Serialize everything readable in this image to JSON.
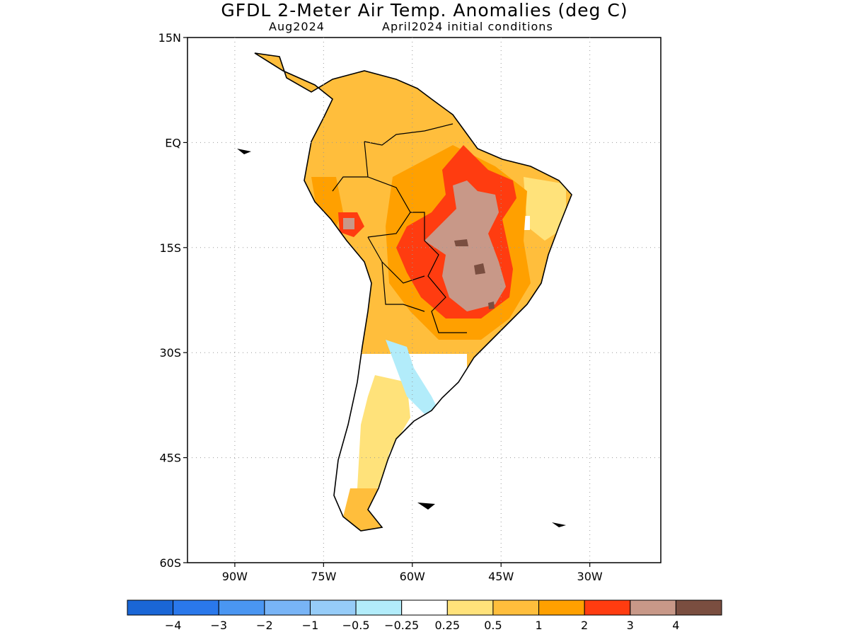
{
  "title": "GFDL 2-Meter Air Temp. Anomalies (deg C)",
  "subtitle_left": "Aug2024",
  "subtitle_right": "April2024 initial conditions",
  "map": {
    "lon_range": [
      -98,
      -18
    ],
    "lat_range": [
      -60,
      15
    ],
    "lat_ticks": [
      {
        "value": 15,
        "label": "15N"
      },
      {
        "value": 0,
        "label": "EQ"
      },
      {
        "value": -15,
        "label": "15S"
      },
      {
        "value": -30,
        "label": "30S"
      },
      {
        "value": -45,
        "label": "45S"
      },
      {
        "value": -60,
        "label": "60S"
      }
    ],
    "lon_ticks": [
      {
        "value": -90,
        "label": "90W"
      },
      {
        "value": -75,
        "label": "75W"
      },
      {
        "value": -60,
        "label": "60W"
      },
      {
        "value": -45,
        "label": "45W"
      },
      {
        "value": -30,
        "label": "30W"
      }
    ],
    "grid": "dotted"
  },
  "colorbar": {
    "colors": [
      "#1a66d6",
      "#2a78eb",
      "#4a96f2",
      "#78b4f6",
      "#96ccf8",
      "#b2ecfa",
      "#ffffff",
      "#ffe27a",
      "#ffbe3c",
      "#ffa000",
      "#ff3c10",
      "#c89888",
      "#7a4e40"
    ],
    "labels": [
      "-4",
      "-3",
      "-2",
      "-1",
      "-0.5",
      "-0.25",
      "0.25",
      "0.5",
      "1",
      "2",
      "3",
      "4"
    ]
  }
}
